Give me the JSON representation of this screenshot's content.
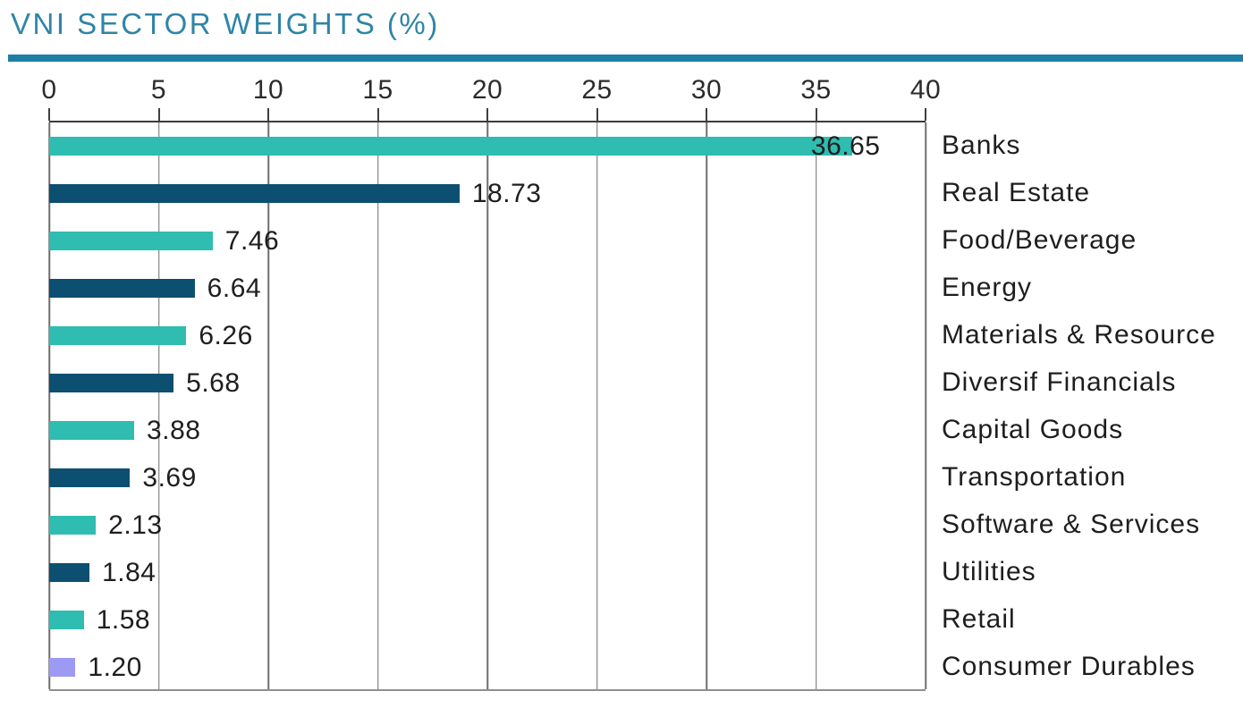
{
  "title": "VNI SECTOR WEIGHTS (%)",
  "chart_data": {
    "type": "bar",
    "orientation": "horizontal",
    "title": "VNI SECTOR WEIGHTS (%)",
    "categories": [
      "Banks",
      "Real Estate",
      "Food/Beverage",
      "Energy",
      "Materials & Resource",
      "Diversif Financials",
      "Capital Goods",
      "Transportation",
      "Software & Services",
      "Utilities",
      "Retail",
      "Consumer Durables"
    ],
    "values": [
      36.65,
      18.73,
      7.46,
      6.64,
      6.26,
      5.68,
      3.88,
      3.69,
      2.13,
      1.84,
      1.58,
      1.2
    ],
    "value_labels": [
      "36.65",
      "18.73",
      "7.46",
      "6.64",
      "6.26",
      "5.68",
      "3.88",
      "3.69",
      "2.13",
      "1.84",
      "1.58",
      "1.20"
    ],
    "x_ticks": [
      "0",
      "5",
      "10",
      "15",
      "20",
      "25",
      "30",
      "35",
      "40"
    ],
    "xlim": [
      0,
      40
    ],
    "grid": true,
    "legend": "none",
    "bar_colors": [
      "#2FBCB1",
      "#0D4F70",
      "#2FBCB1",
      "#0D4F70",
      "#2FBCB1",
      "#0D4F70",
      "#2FBCB1",
      "#0D4F70",
      "#2FBCB1",
      "#0D4F70",
      "#2FBCB1",
      "#9C9AF3"
    ],
    "colors": {
      "teal": "#2FBCB1",
      "navy": "#0D4F70",
      "purple": "#9C9AF3",
      "title_text": "#2F85A6",
      "rule": "#1C7FA6",
      "gridline": "#6E6E6E",
      "axis_line": "#3B3B3B",
      "label_text": "#1E1E1E"
    }
  }
}
